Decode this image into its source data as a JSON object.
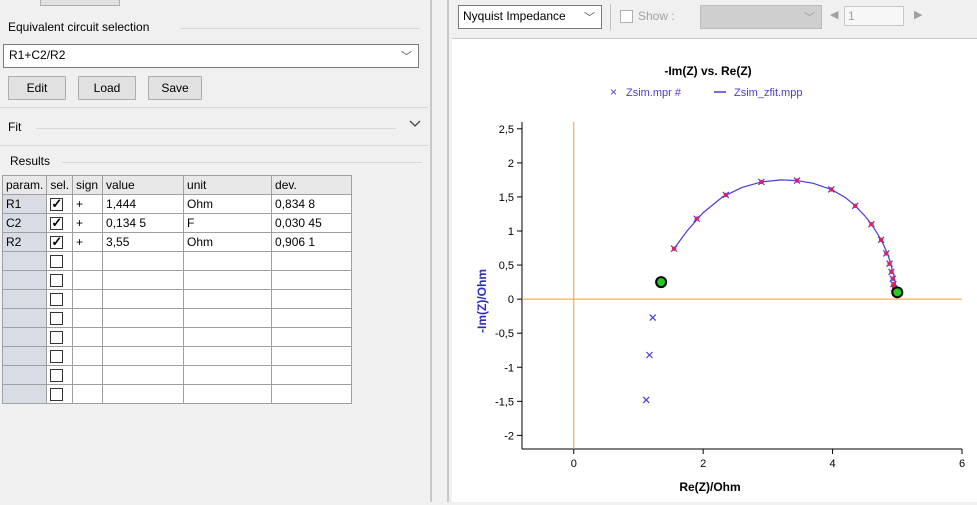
{
  "left_panel": {
    "circuit_group_label": "Equivalent circuit selection",
    "circuit_value": "R1+C2/R2",
    "buttons": {
      "edit": "Edit",
      "load": "Load",
      "save": "Save"
    },
    "fit_label": "Fit",
    "results_label": "Results",
    "table": {
      "headers": [
        "param.",
        "sel.",
        "sign",
        "value",
        "unit",
        "dev."
      ],
      "rows": [
        {
          "param": "R1",
          "sel": true,
          "sign": "+",
          "value": "1,444",
          "unit": "Ohm",
          "dev": "0,834 8"
        },
        {
          "param": "C2",
          "sel": true,
          "sign": "+",
          "value": "0,134 5",
          "unit": "F",
          "dev": "0,030 45"
        },
        {
          "param": "R2",
          "sel": true,
          "sign": "+",
          "value": "3,55",
          "unit": "Ohm",
          "dev": "0,906 1"
        },
        {
          "param": "",
          "sel": false,
          "sign": "",
          "value": "",
          "unit": "",
          "dev": ""
        },
        {
          "param": "",
          "sel": false,
          "sign": "",
          "value": "",
          "unit": "",
          "dev": ""
        },
        {
          "param": "",
          "sel": false,
          "sign": "",
          "value": "",
          "unit": "",
          "dev": ""
        },
        {
          "param": "",
          "sel": false,
          "sign": "",
          "value": "",
          "unit": "",
          "dev": ""
        },
        {
          "param": "",
          "sel": false,
          "sign": "",
          "value": "",
          "unit": "",
          "dev": ""
        },
        {
          "param": "",
          "sel": false,
          "sign": "",
          "value": "",
          "unit": "",
          "dev": ""
        },
        {
          "param": "",
          "sel": false,
          "sign": "",
          "value": "",
          "unit": "",
          "dev": ""
        },
        {
          "param": "",
          "sel": false,
          "sign": "",
          "value": "",
          "unit": "",
          "dev": ""
        }
      ]
    }
  },
  "toolbar": {
    "plot_type": "Nyquist Impedance",
    "show_label": "Show :",
    "show_checked": false,
    "page_value": "1"
  },
  "chart_data": {
    "type": "scatter",
    "title": "-Im(Z) vs. Re(Z)",
    "xlabel": "Re(Z)/Ohm",
    "ylabel": "-Im(Z)/Ohm",
    "xlim": [
      -0.8,
      6
    ],
    "ylim": [
      -2.2,
      2.6
    ],
    "xticks": [
      0,
      2,
      4,
      6
    ],
    "xtick_labels": [
      "0",
      "2",
      "4",
      "6"
    ],
    "yticks": [
      2.5,
      2,
      1.5,
      1,
      0.5,
      0,
      -0.5,
      -1,
      -1.5,
      -2
    ],
    "ytick_labels": [
      "2,5",
      "2",
      "1,5",
      "1",
      "0,5",
      "0",
      "-0,5",
      "-1",
      "-1,5",
      "-2"
    ],
    "legend": [
      {
        "name": "Zsim.mpr #",
        "marker": "×",
        "color": "#4b3bd6"
      },
      {
        "name": "Zsim_zfit.mpp",
        "marker": "—",
        "color": "#4b3bd6"
      }
    ],
    "legend_position": "top",
    "axis_color": "#f0a030",
    "series": [
      {
        "name": "Zsim.mpr #",
        "style": "x",
        "color": "#4b3bd6",
        "x": [
          1.12,
          1.17,
          1.22,
          1.55,
          1.9,
          2.35,
          2.9,
          3.45,
          3.98,
          4.35,
          4.6,
          4.75,
          4.83,
          4.88,
          4.91,
          4.93,
          4.94,
          4.95
        ],
        "y": [
          -1.48,
          -0.82,
          -0.27,
          0.74,
          1.18,
          1.53,
          1.72,
          1.74,
          1.61,
          1.37,
          1.1,
          0.87,
          0.67,
          0.52,
          0.4,
          0.3,
          0.22,
          0.16
        ]
      },
      {
        "name": "Zsim_zfit.mpp",
        "style": "line",
        "color": "#4b3bd6",
        "x": [
          1.55,
          1.75,
          2.0,
          2.3,
          2.6,
          2.9,
          3.2,
          3.45,
          3.7,
          3.98,
          4.2,
          4.35,
          4.5,
          4.6,
          4.68,
          4.75,
          4.8,
          4.85,
          4.89,
          4.92,
          4.95,
          4.97,
          4.99
        ],
        "y": [
          0.74,
          1.0,
          1.27,
          1.5,
          1.64,
          1.72,
          1.75,
          1.74,
          1.7,
          1.61,
          1.49,
          1.37,
          1.22,
          1.1,
          0.98,
          0.87,
          0.77,
          0.66,
          0.55,
          0.44,
          0.33,
          0.22,
          0.1
        ]
      },
      {
        "name": "fit-points",
        "style": "dot",
        "color": "#e0205a",
        "x": [
          1.55,
          1.9,
          2.35,
          2.9,
          3.45,
          3.98,
          4.35,
          4.6,
          4.75,
          4.83,
          4.88,
          4.91,
          4.93,
          4.94,
          4.95
        ],
        "y": [
          0.74,
          1.18,
          1.53,
          1.72,
          1.74,
          1.61,
          1.37,
          1.1,
          0.87,
          0.67,
          0.52,
          0.4,
          0.3,
          0.22,
          0.16
        ]
      },
      {
        "name": "endpoints",
        "style": "circle",
        "color": "#22cc22",
        "x": [
          1.35,
          5.0
        ],
        "y": [
          0.25,
          0.1
        ]
      }
    ]
  }
}
